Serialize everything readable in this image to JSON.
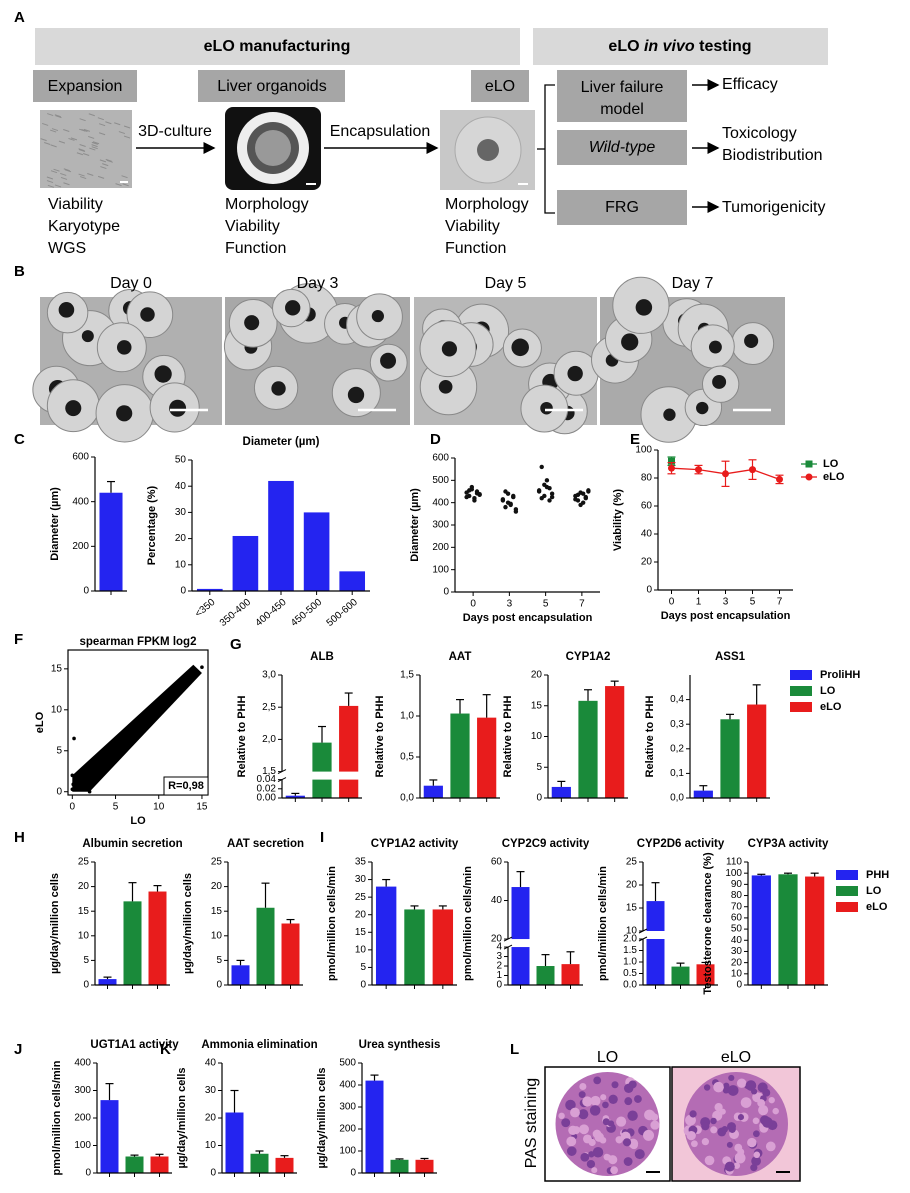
{
  "panel_labels": [
    "A",
    "B",
    "C",
    "D",
    "E",
    "F",
    "G",
    "H",
    "I",
    "J",
    "K",
    "L"
  ],
  "diagram": {
    "sections": [
      {
        "text": "eLO manufacturing"
      },
      {
        "parts": [
          "eLO ",
          "in vivo",
          " testing"
        ]
      }
    ],
    "stages": [
      "Expansion",
      "Liver organoids",
      "eLO"
    ],
    "steps": [
      "3D-culture",
      "Encapsulation"
    ],
    "readouts": [
      [
        "Viability",
        "Karyotype",
        "WGS"
      ],
      [
        "Morphology",
        "Viability",
        "Function"
      ],
      [
        "Morphology",
        "Viability",
        "Function"
      ]
    ],
    "models": [
      [
        "Liver failure",
        "model"
      ],
      [
        "Wild-type"
      ],
      [
        "FRG"
      ]
    ],
    "outcomes": [
      [
        "Efficacy"
      ],
      [
        "Toxicology",
        "Biodistribution"
      ],
      [
        "Tumorigenicity"
      ]
    ]
  },
  "time_course": {
    "days": [
      "Day 0",
      "Day 3",
      "Day 5",
      "Day 7"
    ]
  },
  "staining": {
    "ylabel": "PAS staining",
    "labels": [
      "LO",
      "eLO"
    ]
  },
  "legends": {
    "G": [
      {
        "name": "ProliHH",
        "color": "#2424f0"
      },
      {
        "name": "LO",
        "color": "#1a8a3a"
      },
      {
        "name": "eLO",
        "color": "#e81c1c"
      }
    ],
    "I": [
      {
        "name": "PHH",
        "color": "#2424f0"
      },
      {
        "name": "LO",
        "color": "#1a8a3a"
      },
      {
        "name": "eLO",
        "color": "#e81c1c"
      }
    ]
  },
  "chart_data": [
    {
      "type": "bar",
      "ylabel": "Diameter (µm)",
      "values": [
        440
      ],
      "errors": [
        50
      ],
      "colors": [
        "#2424f0"
      ],
      "ylim": [
        0,
        600
      ],
      "yticks": [
        0,
        200,
        400,
        600
      ]
    },
    {
      "type": "bar",
      "title": "Diameter (µm)",
      "ylabel": "Percentage (%)",
      "categories": [
        "<350",
        "350-400",
        "400-450",
        "450-500",
        "500-600"
      ],
      "values": [
        0.8,
        21,
        42,
        30,
        7.5
      ],
      "color": "#2424f0",
      "ylim": [
        0,
        50
      ],
      "yticks": [
        0,
        10,
        20,
        30,
        40,
        50
      ]
    },
    {
      "type": "strip",
      "ylabel": "Diameter (µm)",
      "xlabel": "Days post encapsulation",
      "categories": [
        "0",
        "3",
        "5",
        "7"
      ],
      "values": [
        [
          445,
          430,
          460,
          420,
          450,
          438,
          425,
          455,
          470,
          410,
          442,
          435
        ],
        [
          410,
          380,
          440,
          395,
          425,
          360,
          415,
          450,
          400,
          390,
          430,
          370
        ],
        [
          450,
          420,
          480,
          470,
          410,
          440,
          455,
          560,
          430,
          500,
          465,
          425
        ],
        [
          430,
          410,
          445,
          400,
          425,
          450,
          415,
          435,
          390,
          440,
          420,
          455
        ]
      ],
      "color": "#111111",
      "ylim": [
        0,
        600
      ],
      "yticks": [
        0,
        100,
        200,
        300,
        400,
        500,
        600
      ]
    },
    {
      "type": "line",
      "ylabel": "Viability (%)",
      "xlabel": "Days post encapsulation",
      "categories": [
        "0",
        "1",
        "3",
        "5",
        "7"
      ],
      "series": [
        {
          "name": "LO",
          "color": "#1a8a3a",
          "marker": "square",
          "values": [
            92,
            null,
            null,
            null,
            null
          ],
          "errors": [
            3,
            null,
            null,
            null,
            null
          ]
        },
        {
          "name": "eLO",
          "color": "#e81c1c",
          "marker": "circle",
          "values": [
            87,
            86,
            83,
            86,
            79
          ],
          "errors": [
            4,
            3,
            9,
            7,
            3
          ]
        }
      ],
      "ylim": [
        0,
        100
      ],
      "yticks": [
        0,
        20,
        40,
        60,
        80,
        100
      ],
      "legend": "upper right"
    },
    {
      "type": "scatter",
      "title": "spearman FPKM log2",
      "xlabel": "LO",
      "ylabel": "eLO",
      "x": [
        0,
        0,
        0.2,
        0.5,
        1,
        1.5,
        2,
        2.5,
        3,
        3.5,
        4,
        4.5,
        5,
        5.5,
        6,
        6.5,
        7,
        7.5,
        8,
        8.5,
        9,
        9.5,
        10,
        10.5,
        11,
        11.5,
        12,
        12.5,
        13,
        13.5,
        14,
        14.5,
        15,
        2,
        4,
        6,
        1,
        3,
        9,
        0.1
      ],
      "y": [
        0.3,
        2,
        6.5,
        1,
        1.2,
        2,
        1.5,
        3,
        2.8,
        4,
        3.6,
        4.8,
        5.2,
        5.5,
        6.3,
        6.4,
        7.1,
        7.6,
        8.2,
        8.4,
        9.1,
        9.3,
        10.2,
        10.4,
        11.1,
        11.5,
        12.3,
        12.6,
        13.2,
        13.4,
        14.1,
        14.6,
        15.2,
        0,
        5.5,
        7.2,
        2.2,
        4.4,
        10.3,
        0.9
      ],
      "xlim": [
        -0.5,
        15.7
      ],
      "ylim": [
        -0.4,
        17.3
      ],
      "xticks": [
        0,
        5,
        10,
        15
      ],
      "yticks": [
        0,
        5,
        10,
        15
      ],
      "annotation": "R=0,98",
      "color": "#000000"
    },
    {
      "type": "bar",
      "title": "ALB",
      "ylabel": "Relative to PHH",
      "values": [
        0.005,
        1.95,
        2.52
      ],
      "errors": [
        0.005,
        0.25,
        0.2
      ],
      "colors": [
        "#2424f0",
        "#1a8a3a",
        "#e81c1c"
      ],
      "ysegments": [
        [
          0,
          0.04
        ],
        [
          1.5,
          3
        ]
      ],
      "yticks": [
        {
          "value": 0,
          "label": "0.00"
        },
        {
          "value": 0.02,
          "label": "0.02"
        },
        {
          "value": 0.04,
          "label": "0.04"
        },
        {
          "value": 1.5,
          "label": "1,5"
        },
        {
          "value": 2,
          "label": "2,0"
        },
        {
          "value": 2.5,
          "label": "2,5"
        },
        {
          "value": 3,
          "label": "3,0"
        }
      ]
    },
    {
      "type": "bar",
      "title": "AAT",
      "ylabel": "Relative to PHH",
      "values": [
        0.15,
        1.03,
        0.98
      ],
      "errors": [
        0.07,
        0.17,
        0.28
      ],
      "colors": [
        "#2424f0",
        "#1a8a3a",
        "#e81c1c"
      ],
      "ylim": [
        0,
        1.5
      ],
      "yticks": [
        {
          "value": 0,
          "label": "0,0"
        },
        {
          "value": 0.5,
          "label": "0,5"
        },
        {
          "value": 1,
          "label": "1,0"
        },
        {
          "value": 1.5,
          "label": "1,5"
        }
      ]
    },
    {
      "type": "bar",
      "title": "CYP1A2",
      "ylabel": "Relative to PHH",
      "values": [
        1.8,
        15.8,
        18.2
      ],
      "errors": [
        0.9,
        1.8,
        0.8
      ],
      "colors": [
        "#2424f0",
        "#1a8a3a",
        "#e81c1c"
      ],
      "ylim": [
        0,
        20
      ],
      "yticks": [
        0,
        5,
        10,
        15,
        20
      ]
    },
    {
      "type": "bar",
      "title": "ASS1",
      "ylabel": "Relative to PHH",
      "values": [
        0.03,
        0.32,
        0.38
      ],
      "errors": [
        0.02,
        0.02,
        0.08
      ],
      "colors": [
        "#2424f0",
        "#1a8a3a",
        "#e81c1c"
      ],
      "ylim": [
        0,
        0.5
      ],
      "yticks": [
        {
          "value": 0,
          "label": "0,0"
        },
        {
          "value": 0.1,
          "label": "0,1"
        },
        {
          "value": 0.2,
          "label": "0,2"
        },
        {
          "value": 0.3,
          "label": "0,3"
        },
        {
          "value": 0.4,
          "label": "0,4"
        }
      ]
    },
    {
      "type": "bar",
      "title": "Albumin secretion",
      "ylabel": "µg/day/million cells",
      "values": [
        1.2,
        17,
        19
      ],
      "errors": [
        0.4,
        3.8,
        1.2
      ],
      "colors": [
        "#2424f0",
        "#1a8a3a",
        "#e81c1c"
      ],
      "ylim": [
        0,
        25
      ],
      "yticks": [
        0,
        5,
        10,
        15,
        20,
        25
      ]
    },
    {
      "type": "bar",
      "title": "AAT secretion",
      "ylabel": "µg/day/million cells",
      "values": [
        4,
        15.7,
        12.5
      ],
      "errors": [
        1,
        5,
        0.8
      ],
      "colors": [
        "#2424f0",
        "#1a8a3a",
        "#e81c1c"
      ],
      "ylim": [
        0,
        25
      ],
      "yticks": [
        0,
        5,
        10,
        15,
        20,
        25
      ]
    },
    {
      "type": "bar",
      "title": "CYP1A2 activity",
      "ylabel": "pmol/million cells/min",
      "values": [
        28,
        21.5,
        21.5
      ],
      "errors": [
        2,
        1,
        1
      ],
      "colors": [
        "#2424f0",
        "#1a8a3a",
        "#e81c1c"
      ],
      "ylim": [
        0,
        35
      ],
      "yticks": [
        0,
        5,
        10,
        15,
        20,
        25,
        30,
        35
      ]
    },
    {
      "type": "bar",
      "title": "CYP2C9 activity",
      "ylabel": "pmol/million cells/min",
      "values": [
        47,
        2,
        2.2
      ],
      "errors": [
        8,
        1.2,
        1.3
      ],
      "colors": [
        "#2424f0",
        "#1a8a3a",
        "#e81c1c"
      ],
      "ysegments": [
        [
          0,
          4
        ],
        [
          20,
          60
        ]
      ],
      "yticks": [
        0,
        1,
        2,
        3,
        4,
        20,
        40,
        60
      ]
    },
    {
      "type": "bar",
      "title": "CYP2D6 activity",
      "ylabel": "pmol/million cells/min",
      "values": [
        16.5,
        0.8,
        0.9
      ],
      "errors": [
        4,
        0.15,
        0.08
      ],
      "colors": [
        "#2424f0",
        "#1a8a3a",
        "#e81c1c"
      ],
      "ysegments": [
        [
          0,
          2
        ],
        [
          10,
          25
        ]
      ],
      "yticks": [
        {
          "value": 0,
          "label": "0.0"
        },
        {
          "value": 0.5,
          "label": "0.5"
        },
        {
          "value": 1,
          "label": "1.0"
        },
        {
          "value": 1.5,
          "label": "1.5"
        },
        {
          "value": 2,
          "label": "2.0"
        },
        10,
        15,
        20,
        25
      ]
    },
    {
      "type": "bar",
      "title": "CYP3A activity",
      "ylabel": "Testosterone clearance (%)",
      "values": [
        98,
        99,
        97
      ],
      "errors": [
        1,
        1,
        3
      ],
      "colors": [
        "#2424f0",
        "#1a8a3a",
        "#e81c1c"
      ],
      "ylim": [
        0,
        110
      ],
      "yticks": [
        0,
        10,
        20,
        30,
        40,
        50,
        60,
        70,
        80,
        90,
        100,
        110
      ]
    },
    {
      "type": "bar",
      "title": "UGT1A1 activity",
      "ylabel": "pmol/million cells/min",
      "values": [
        265,
        60,
        60
      ],
      "errors": [
        60,
        5,
        8
      ],
      "colors": [
        "#2424f0",
        "#1a8a3a",
        "#e81c1c"
      ],
      "ylim": [
        0,
        400
      ],
      "yticks": [
        0,
        100,
        200,
        300,
        400
      ]
    },
    {
      "type": "bar",
      "title": "Ammonia elimination",
      "ylabel": "µg/day/million cells",
      "values": [
        22,
        7,
        5.5
      ],
      "errors": [
        8,
        1,
        0.8
      ],
      "colors": [
        "#2424f0",
        "#1a8a3a",
        "#e81c1c"
      ],
      "ylim": [
        0,
        40
      ],
      "yticks": [
        0,
        10,
        20,
        30,
        40
      ]
    },
    {
      "type": "bar",
      "title": "Urea synthesis",
      "ylabel": "µg/day/million cells",
      "values": [
        420,
        60,
        60
      ],
      "errors": [
        25,
        4,
        6
      ],
      "colors": [
        "#2424f0",
        "#1a8a3a",
        "#e81c1c"
      ],
      "ylim": [
        0,
        500
      ],
      "yticks": [
        0,
        100,
        200,
        300,
        400,
        500
      ]
    }
  ]
}
